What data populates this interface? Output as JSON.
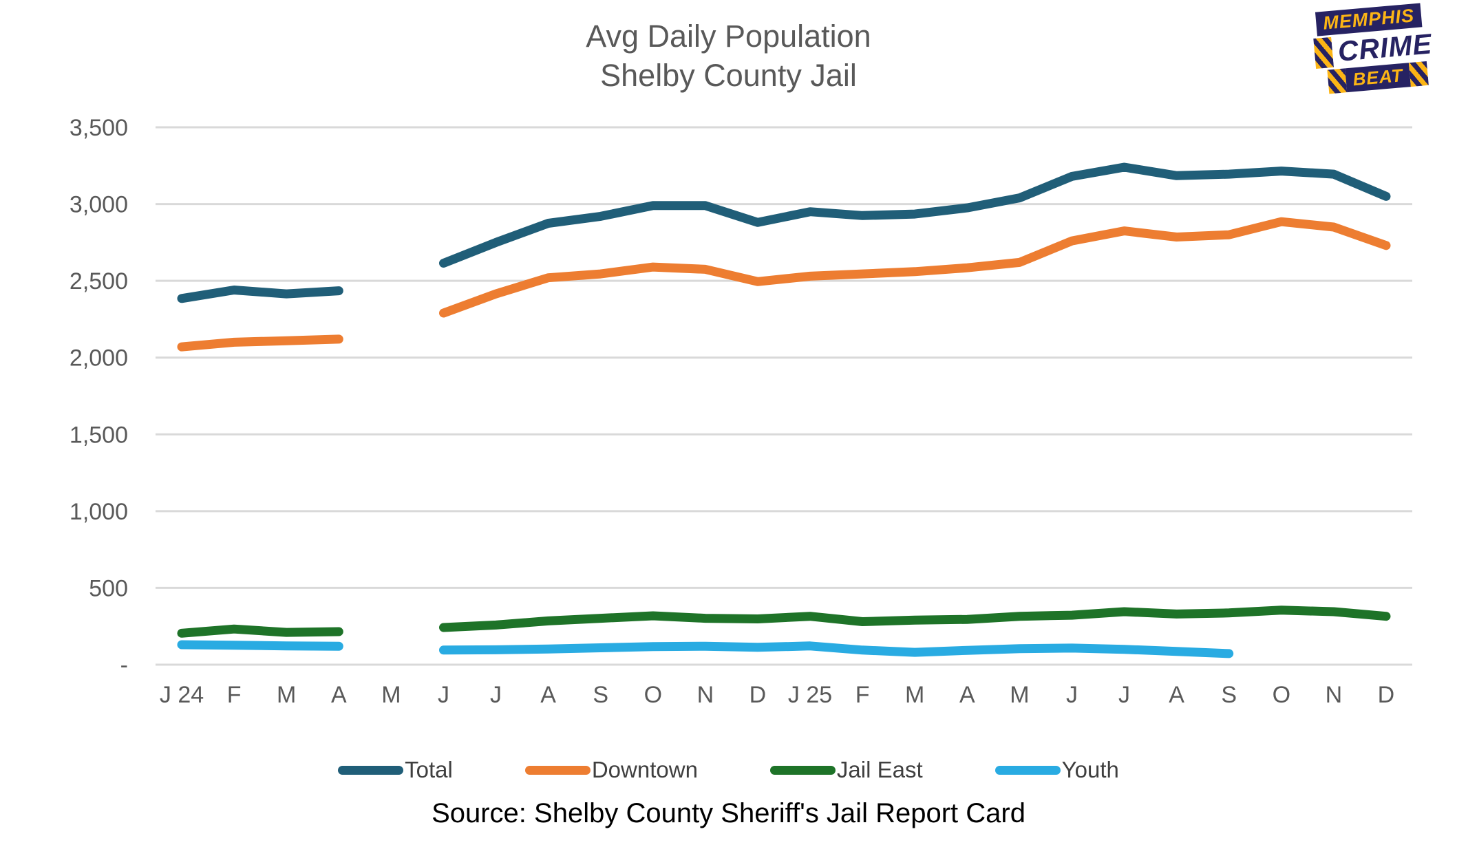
{
  "header": {
    "title_line1": "Avg Daily Population",
    "title_line2": "Shelby County Jail"
  },
  "logo": {
    "line1": "MEMPHIS",
    "line2": "CRIME",
    "line3": "BEAT",
    "navy": "#262262",
    "yellow": "#FCB515"
  },
  "chart_data": {
    "type": "line",
    "title": "Avg Daily Population Shelby County Jail",
    "xlabel": "",
    "ylabel": "",
    "categories": [
      "J 24",
      "F",
      "M",
      "A",
      "M",
      "J",
      "J",
      "A",
      "S",
      "O",
      "N",
      "D",
      "J 25",
      "F",
      "M",
      "A",
      "M",
      "J",
      "J",
      "A",
      "S",
      "O",
      "N",
      "D"
    ],
    "series": [
      {
        "name": "Total",
        "color": "#205E78",
        "values": [
          2385,
          2440,
          2415,
          2435,
          null,
          2615,
          2750,
          2875,
          2920,
          2990,
          2990,
          2880,
          2950,
          2925,
          2935,
          2975,
          3040,
          3180,
          3240,
          3185,
          3195,
          3215,
          3195,
          3050
        ]
      },
      {
        "name": "Downtown",
        "color": "#ED7D31",
        "values": [
          2070,
          2100,
          2110,
          2120,
          null,
          2290,
          2415,
          2520,
          2545,
          2590,
          2575,
          2495,
          2530,
          2545,
          2560,
          2585,
          2620,
          2760,
          2825,
          2785,
          2800,
          2885,
          2850,
          2730
        ]
      },
      {
        "name": "Jail East",
        "color": "#1E7328",
        "values": [
          205,
          232,
          210,
          215,
          null,
          242,
          258,
          285,
          302,
          318,
          302,
          298,
          315,
          280,
          290,
          295,
          315,
          322,
          345,
          330,
          337,
          355,
          345,
          315
        ]
      },
      {
        "name": "Youth",
        "color": "#29ABE2",
        "values": [
          130,
          127,
          122,
          120,
          null,
          95,
          97,
          102,
          110,
          118,
          120,
          113,
          122,
          95,
          80,
          93,
          104,
          108,
          100,
          86,
          72,
          null,
          null,
          null
        ]
      }
    ],
    "ylim": [
      0,
      3500
    ],
    "ytick_interval": 500,
    "ytick_labels": [
      "-",
      "500",
      "1,000",
      "1,500",
      "2,000",
      "2,500",
      "3,000",
      "3,500"
    ],
    "grid": true,
    "gridline_color": "#D9D9D9",
    "legend_position": "bottom"
  },
  "footer": {
    "source": "Source: Shelby County Sheriff's Jail Report Card"
  }
}
